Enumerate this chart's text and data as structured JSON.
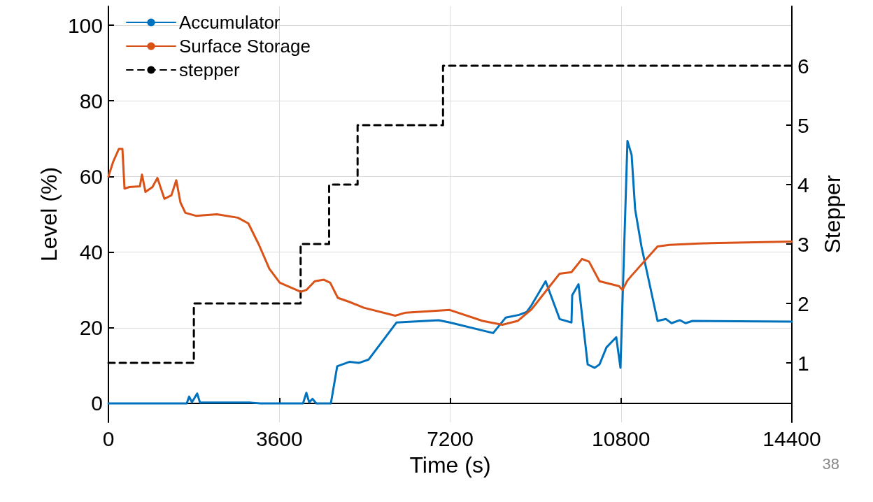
{
  "chart_data": {
    "type": "line",
    "xlabel": "Time (s)",
    "ylabel": "Level (%)",
    "y2label": "Stepper",
    "xlim": [
      0,
      14400
    ],
    "xticks": [
      0,
      3600,
      7200,
      10800,
      14400
    ],
    "ylim": [
      -5,
      105
    ],
    "yticks": [
      0,
      20,
      40,
      60,
      80,
      100
    ],
    "y2lim": [
      0,
      7
    ],
    "y2ticks": [
      1,
      2,
      3,
      4,
      5,
      6
    ],
    "grid": true,
    "legend": "top left",
    "marker": "none",
    "annotations": [
      "38"
    ],
    "series": [
      {
        "name": "Accumulator",
        "color": "#0072bd",
        "line_style": "solid",
        "x": [
          0,
          330,
          1650,
          1700,
          1760,
          1870,
          1930,
          3000,
          3200,
          4100,
          4171,
          4230,
          4300,
          4380,
          4687,
          4820,
          5085,
          5277,
          5483,
          6072,
          6957,
          7193,
          8106,
          8372,
          8652,
          8814,
          8917,
          9212,
          9507,
          9757,
          9772,
          9905,
          10098,
          10245,
          10347,
          10494,
          10700,
          10789,
          10936,
          11024,
          11098,
          11231,
          11570,
          11747,
          11865,
          12042,
          12160,
          12307,
          14400
        ],
        "values": [
          0,
          0,
          0,
          1.8,
          0.3,
          2.6,
          0.2,
          0.2,
          0,
          0,
          2.8,
          0.3,
          1.2,
          0,
          0,
          9.8,
          11,
          10.7,
          11.6,
          21.4,
          22,
          21.4,
          18.6,
          22.7,
          23.4,
          24.2,
          26,
          32.3,
          22.3,
          21.4,
          28.6,
          31.5,
          10.3,
          9.4,
          10.3,
          14.8,
          17.5,
          9.4,
          69.4,
          65.7,
          51.3,
          41.5,
          21.8,
          22.3,
          21.2,
          22,
          21.2,
          21.8,
          21.6
        ]
      },
      {
        "name": "Surface Storage",
        "color": "#d95319",
        "line_style": "solid",
        "x": [
          0,
          103,
          221,
          295,
          339,
          442,
          663,
          707,
          781,
          928,
          1032,
          1179,
          1326,
          1430,
          1518,
          1621,
          1842,
          2285,
          2727,
          2948,
          3169,
          3390,
          3611,
          4053,
          4171,
          4348,
          4540,
          4672,
          4834,
          5085,
          5380,
          6043,
          6264,
          7193,
          7885,
          8298,
          8622,
          8917,
          9507,
          9757,
          9978,
          10126,
          10347,
          10759,
          10833,
          10936,
          11024,
          11570,
          11820,
          12455,
          14400
        ],
        "values": [
          60,
          64,
          67.3,
          67.3,
          56.8,
          57.2,
          57.4,
          60.5,
          55.9,
          57.2,
          59.6,
          54.1,
          55,
          59,
          53.1,
          50.4,
          49.6,
          50,
          49.1,
          47.6,
          42,
          35.6,
          31.9,
          29.5,
          30,
          32.3,
          32.7,
          31.9,
          27.9,
          26.8,
          25.3,
          23.2,
          24,
          24.7,
          21.8,
          20.8,
          21.8,
          24.9,
          34.3,
          34.7,
          38.2,
          37.5,
          32.3,
          31,
          30,
          32.5,
          33.8,
          41.5,
          41.9,
          42.3,
          42.8
        ]
      },
      {
        "name": "stepper",
        "type": "step",
        "axis": "y2",
        "color": "#000000",
        "line_style": "dashed",
        "x": [
          0,
          1800,
          4050,
          4650,
          5250,
          7050,
          14400
        ],
        "values": [
          1,
          2,
          3,
          4,
          5,
          6,
          6
        ]
      }
    ]
  }
}
